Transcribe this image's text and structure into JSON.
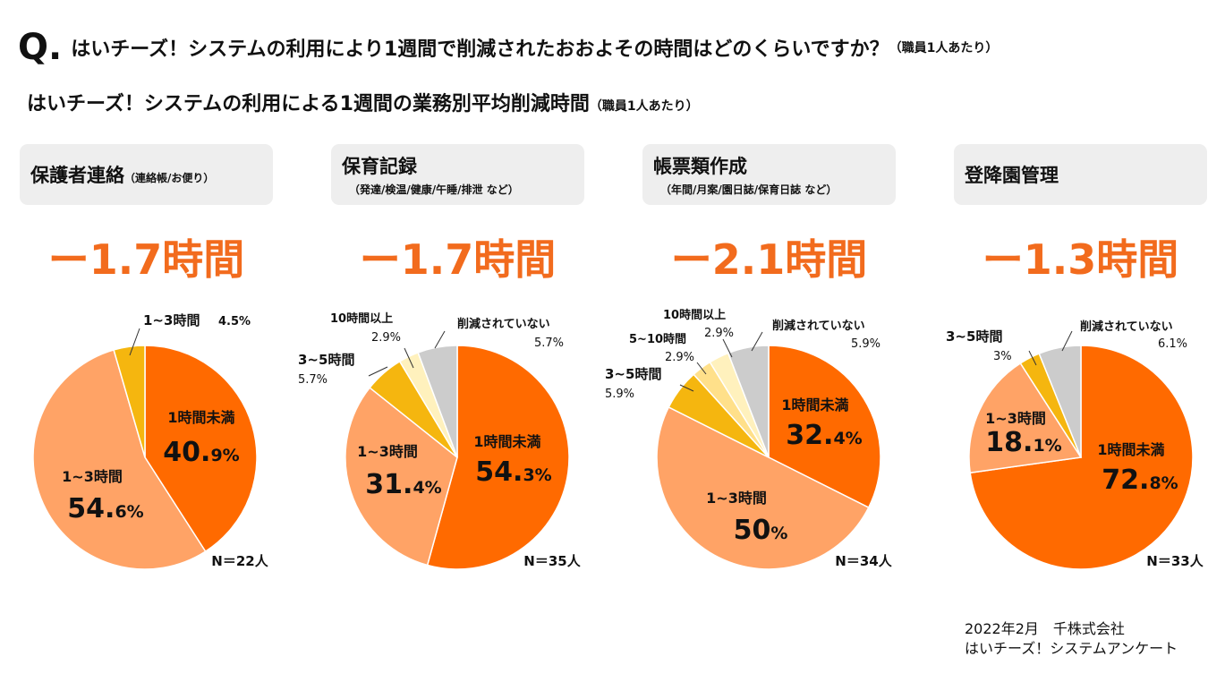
{
  "question": {
    "mark": "Q.",
    "text": "はいチーズ！システムの利用により1週間で削減されたおおよその時間はどのくらいですか？",
    "note": "（職員1人あたり）"
  },
  "subtitle": {
    "text": "はいチーズ！システムの利用による1週間の業務別平均削減時間",
    "note": "（職員1人あたり）"
  },
  "categories": [
    {
      "title": "保護者連絡",
      "note": "（連絡帳/お便り）",
      "sub": "",
      "average": "ー1.7時間"
    },
    {
      "title": "保育記録",
      "note": "",
      "sub": "（発達/検温/健康/午睡/排泄 など）",
      "average": "ー1.7時間"
    },
    {
      "title": "帳票類作成",
      "note": "",
      "sub": "（年間/月案/園日誌/保育日誌 など）",
      "average": "ー2.1時間"
    },
    {
      "title": "登降園管理",
      "note": "",
      "sub": "",
      "average": "ー1.3時間"
    }
  ],
  "chart_data": [
    {
      "type": "pie",
      "title": "保護者連絡",
      "n_label": "N＝22人",
      "slices": [
        {
          "label": "1時間未満",
          "value": 40.9,
          "value_num": "40.",
          "value_dec": "9%",
          "color": "#ff6a00"
        },
        {
          "label": "1~3時間",
          "value": 54.6,
          "value_num": "54.",
          "value_dec": "6%",
          "color": "#ffa366"
        },
        {
          "label": "1~3時間",
          "value": 4.5,
          "value_text": "4.5%",
          "color": "#f5b60f"
        }
      ]
    },
    {
      "type": "pie",
      "title": "保育記録",
      "n_label": "N＝35人",
      "slices": [
        {
          "label": "1時間未満",
          "value": 54.3,
          "value_num": "54.",
          "value_dec": "3%",
          "color": "#ff6a00"
        },
        {
          "label": "1~3時間",
          "value": 31.4,
          "value_num": "31.",
          "value_dec": "4%",
          "color": "#ffa366"
        },
        {
          "label": "3~5時間",
          "value": 5.7,
          "value_text": "5.7%",
          "color": "#f5b60f"
        },
        {
          "label": "10時間以上",
          "value": 2.9,
          "value_text": "2.9%",
          "color": "#fff1bd"
        },
        {
          "label": "削減されていない",
          "value": 5.7,
          "value_text": "5.7%",
          "color": "#cccccc"
        }
      ]
    },
    {
      "type": "pie",
      "title": "帳票類作成",
      "n_label": "N＝34人",
      "slices": [
        {
          "label": "1時間未満",
          "value": 32.4,
          "value_num": "32.",
          "value_dec": "4%",
          "color": "#ff6a00"
        },
        {
          "label": "1~3時間",
          "value": 50,
          "value_num": "50",
          "value_dec": "%",
          "color": "#ffa366"
        },
        {
          "label": "3~5時間",
          "value": 5.9,
          "value_text": "5.9%",
          "color": "#f5b60f"
        },
        {
          "label": "5~10時間",
          "value": 2.9,
          "value_text": "2.9%",
          "color": "#ffe08a"
        },
        {
          "label": "10時間以上",
          "value": 2.9,
          "value_text": "2.9%",
          "color": "#fff1bd"
        },
        {
          "label": "削減されていない",
          "value": 5.9,
          "value_text": "5.9%",
          "color": "#cccccc"
        }
      ]
    },
    {
      "type": "pie",
      "title": "登降園管理",
      "n_label": "N＝33人",
      "slices": [
        {
          "label": "1時間未満",
          "value": 72.8,
          "value_num": "72.",
          "value_dec": "8%",
          "color": "#ff6a00"
        },
        {
          "label": "1~3時間",
          "value": 18.1,
          "value_num": "18.",
          "value_dec": "1%",
          "color": "#ffa366"
        },
        {
          "label": "3~5時間",
          "value": 3,
          "value_text": "3%",
          "color": "#f5b60f"
        },
        {
          "label": "削減されていない",
          "value": 6.1,
          "value_text": "6.1%",
          "color": "#cccccc"
        }
      ]
    }
  ],
  "footer": {
    "line1": "2022年2月　千株式会社",
    "line2": "はいチーズ！システムアンケート"
  }
}
